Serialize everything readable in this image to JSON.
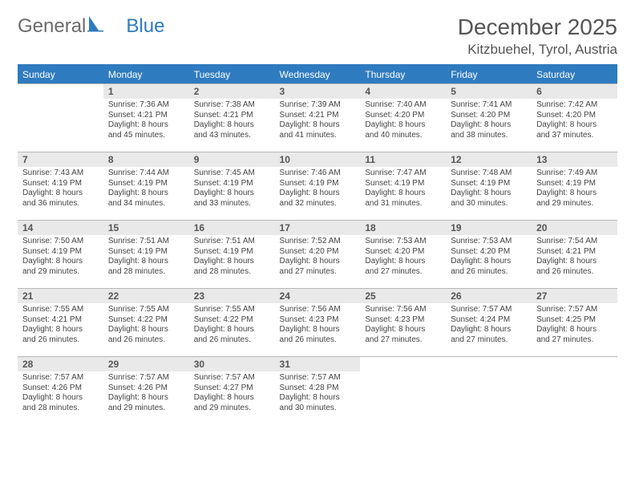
{
  "logo": {
    "text1": "General",
    "text2": "Blue"
  },
  "title": "December 2025",
  "location": "Kitzbuehel, Tyrol, Austria",
  "colors": {
    "header_bg": "#2f7bbf",
    "header_text": "#ffffff",
    "daynum_bg": "#e9e9e9",
    "border": "#b8b8b8",
    "logo_blue": "#2f7bbf",
    "logo_gray": "#6b6b6b"
  },
  "fonts": {
    "title_size": 28,
    "location_size": 17,
    "th_size": 12,
    "daynum_size": 12,
    "body_size": 10
  },
  "weekdays": [
    "Sunday",
    "Monday",
    "Tuesday",
    "Wednesday",
    "Thursday",
    "Friday",
    "Saturday"
  ],
  "weeks": [
    [
      {
        "blank": true
      },
      {
        "day": "1",
        "sunrise": "7:36 AM",
        "sunset": "4:21 PM",
        "dl1": "Daylight: 8 hours",
        "dl2": "and 45 minutes."
      },
      {
        "day": "2",
        "sunrise": "7:38 AM",
        "sunset": "4:21 PM",
        "dl1": "Daylight: 8 hours",
        "dl2": "and 43 minutes."
      },
      {
        "day": "3",
        "sunrise": "7:39 AM",
        "sunset": "4:21 PM",
        "dl1": "Daylight: 8 hours",
        "dl2": "and 41 minutes."
      },
      {
        "day": "4",
        "sunrise": "7:40 AM",
        "sunset": "4:20 PM",
        "dl1": "Daylight: 8 hours",
        "dl2": "and 40 minutes."
      },
      {
        "day": "5",
        "sunrise": "7:41 AM",
        "sunset": "4:20 PM",
        "dl1": "Daylight: 8 hours",
        "dl2": "and 38 minutes."
      },
      {
        "day": "6",
        "sunrise": "7:42 AM",
        "sunset": "4:20 PM",
        "dl1": "Daylight: 8 hours",
        "dl2": "and 37 minutes."
      }
    ],
    [
      {
        "day": "7",
        "sunrise": "7:43 AM",
        "sunset": "4:19 PM",
        "dl1": "Daylight: 8 hours",
        "dl2": "and 36 minutes."
      },
      {
        "day": "8",
        "sunrise": "7:44 AM",
        "sunset": "4:19 PM",
        "dl1": "Daylight: 8 hours",
        "dl2": "and 34 minutes."
      },
      {
        "day": "9",
        "sunrise": "7:45 AM",
        "sunset": "4:19 PM",
        "dl1": "Daylight: 8 hours",
        "dl2": "and 33 minutes."
      },
      {
        "day": "10",
        "sunrise": "7:46 AM",
        "sunset": "4:19 PM",
        "dl1": "Daylight: 8 hours",
        "dl2": "and 32 minutes."
      },
      {
        "day": "11",
        "sunrise": "7:47 AM",
        "sunset": "4:19 PM",
        "dl1": "Daylight: 8 hours",
        "dl2": "and 31 minutes."
      },
      {
        "day": "12",
        "sunrise": "7:48 AM",
        "sunset": "4:19 PM",
        "dl1": "Daylight: 8 hours",
        "dl2": "and 30 minutes."
      },
      {
        "day": "13",
        "sunrise": "7:49 AM",
        "sunset": "4:19 PM",
        "dl1": "Daylight: 8 hours",
        "dl2": "and 29 minutes."
      }
    ],
    [
      {
        "day": "14",
        "sunrise": "7:50 AM",
        "sunset": "4:19 PM",
        "dl1": "Daylight: 8 hours",
        "dl2": "and 29 minutes."
      },
      {
        "day": "15",
        "sunrise": "7:51 AM",
        "sunset": "4:19 PM",
        "dl1": "Daylight: 8 hours",
        "dl2": "and 28 minutes."
      },
      {
        "day": "16",
        "sunrise": "7:51 AM",
        "sunset": "4:19 PM",
        "dl1": "Daylight: 8 hours",
        "dl2": "and 28 minutes."
      },
      {
        "day": "17",
        "sunrise": "7:52 AM",
        "sunset": "4:20 PM",
        "dl1": "Daylight: 8 hours",
        "dl2": "and 27 minutes."
      },
      {
        "day": "18",
        "sunrise": "7:53 AM",
        "sunset": "4:20 PM",
        "dl1": "Daylight: 8 hours",
        "dl2": "and 27 minutes."
      },
      {
        "day": "19",
        "sunrise": "7:53 AM",
        "sunset": "4:20 PM",
        "dl1": "Daylight: 8 hours",
        "dl2": "and 26 minutes."
      },
      {
        "day": "20",
        "sunrise": "7:54 AM",
        "sunset": "4:21 PM",
        "dl1": "Daylight: 8 hours",
        "dl2": "and 26 minutes."
      }
    ],
    [
      {
        "day": "21",
        "sunrise": "7:55 AM",
        "sunset": "4:21 PM",
        "dl1": "Daylight: 8 hours",
        "dl2": "and 26 minutes."
      },
      {
        "day": "22",
        "sunrise": "7:55 AM",
        "sunset": "4:22 PM",
        "dl1": "Daylight: 8 hours",
        "dl2": "and 26 minutes."
      },
      {
        "day": "23",
        "sunrise": "7:55 AM",
        "sunset": "4:22 PM",
        "dl1": "Daylight: 8 hours",
        "dl2": "and 26 minutes."
      },
      {
        "day": "24",
        "sunrise": "7:56 AM",
        "sunset": "4:23 PM",
        "dl1": "Daylight: 8 hours",
        "dl2": "and 26 minutes."
      },
      {
        "day": "25",
        "sunrise": "7:56 AM",
        "sunset": "4:23 PM",
        "dl1": "Daylight: 8 hours",
        "dl2": "and 27 minutes."
      },
      {
        "day": "26",
        "sunrise": "7:57 AM",
        "sunset": "4:24 PM",
        "dl1": "Daylight: 8 hours",
        "dl2": "and 27 minutes."
      },
      {
        "day": "27",
        "sunrise": "7:57 AM",
        "sunset": "4:25 PM",
        "dl1": "Daylight: 8 hours",
        "dl2": "and 27 minutes."
      }
    ],
    [
      {
        "day": "28",
        "sunrise": "7:57 AM",
        "sunset": "4:26 PM",
        "dl1": "Daylight: 8 hours",
        "dl2": "and 28 minutes."
      },
      {
        "day": "29",
        "sunrise": "7:57 AM",
        "sunset": "4:26 PM",
        "dl1": "Daylight: 8 hours",
        "dl2": "and 29 minutes."
      },
      {
        "day": "30",
        "sunrise": "7:57 AM",
        "sunset": "4:27 PM",
        "dl1": "Daylight: 8 hours",
        "dl2": "and 29 minutes."
      },
      {
        "day": "31",
        "sunrise": "7:57 AM",
        "sunset": "4:28 PM",
        "dl1": "Daylight: 8 hours",
        "dl2": "and 30 minutes."
      },
      {
        "blank": true
      },
      {
        "blank": true
      },
      {
        "blank": true
      }
    ]
  ]
}
